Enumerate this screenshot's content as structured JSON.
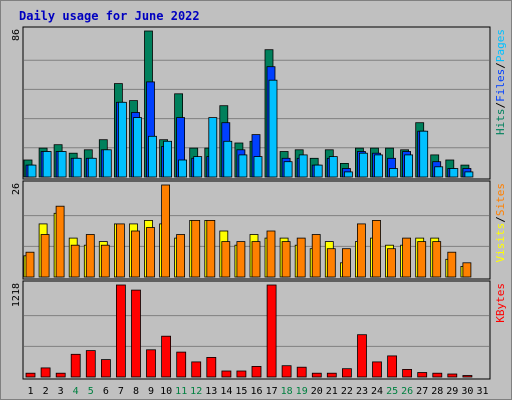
{
  "chart_data": {
    "type": "bar",
    "title": "Daily usage for June 2022",
    "colors": {
      "hits": "#00805c",
      "files": "#0040ff",
      "pages": "#00c0ff",
      "visits": "#ffff00",
      "sites": "#ff8000",
      "kbytes": "#ff0000",
      "title": "#0000c0",
      "weekend_label": "#008040",
      "weekday_label": "#000000"
    },
    "days": [
      "1",
      "2",
      "3",
      "4",
      "5",
      "6",
      "7",
      "8",
      "9",
      "10",
      "11",
      "12",
      "13",
      "14",
      "15",
      "16",
      "17",
      "18",
      "19",
      "20",
      "21",
      "22",
      "23",
      "24",
      "25",
      "26",
      "27",
      "28",
      "29",
      "30",
      "31"
    ],
    "weekend_days": [
      "4",
      "5",
      "11",
      "12",
      "18",
      "19",
      "25",
      "26"
    ],
    "panels": [
      {
        "id": "hits-panel",
        "max_label": "86",
        "ymax": 86,
        "legend": [
          {
            "text": "Hits",
            "color": "#00805c"
          },
          {
            "text": "Files",
            "color": "#0040ff"
          },
          {
            "text": "Pages",
            "color": "#00c0ff"
          }
        ],
        "series": [
          {
            "name": "Hits",
            "color": "#00805c",
            "values": [
              10,
              17,
              19,
              14,
              16,
              22,
              55,
              45,
              86,
              22,
              49,
              17,
              17,
              42,
              20,
              21,
              75,
              15,
              16,
              11,
              16,
              8,
              17,
              17,
              17,
              16,
              32,
              13,
              10,
              7,
              0
            ]
          },
          {
            "name": "Files",
            "color": "#0040ff",
            "values": [
              7,
              15,
              15,
              11,
              11,
              16,
              44,
              38,
              56,
              18,
              35,
              11,
              12,
              32,
              16,
              25,
              65,
              11,
              11,
              7,
              11,
              5,
              15,
              14,
              11,
              15,
              27,
              9,
              5,
              5,
              0
            ]
          },
          {
            "name": "Pages",
            "color": "#00c0ff",
            "values": [
              7,
              15,
              15,
              11,
              11,
              16,
              44,
              35,
              24,
              21,
              10,
              12,
              35,
              21,
              13,
              12,
              57,
              9,
              13,
              7,
              12,
              3,
              14,
              13,
              5,
              13,
              27,
              6,
              5,
              3,
              0
            ]
          }
        ]
      },
      {
        "id": "visits-panel",
        "max_label": "26",
        "ymax": 26,
        "legend": [
          {
            "text": "Visits",
            "color": "#ffff00"
          },
          {
            "text": "Sites",
            "color": "#ff8000"
          }
        ],
        "series": [
          {
            "name": "Visits",
            "color": "#ffff00",
            "values": [
              6,
              15,
              18,
              11,
              9,
              10,
              15,
              15,
              16,
              15,
              11,
              16,
              16,
              13,
              9,
              12,
              11,
              11,
              9,
              8,
              10,
              4,
              10,
              11,
              9,
              9,
              11,
              11,
              5,
              3,
              0
            ]
          },
          {
            "name": "Sites",
            "color": "#ff8000",
            "values": [
              7,
              12,
              20,
              9,
              12,
              9,
              15,
              13,
              14,
              26,
              12,
              16,
              16,
              10,
              10,
              10,
              13,
              10,
              11,
              12,
              8,
              8,
              15,
              16,
              8,
              11,
              10,
              10,
              7,
              4,
              0
            ]
          }
        ]
      },
      {
        "id": "kbytes-panel",
        "max_label": "1218",
        "ymax": 1218,
        "legend": [
          {
            "text": "KBytes",
            "color": "#ff0000"
          }
        ],
        "series": [
          {
            "name": "KBytes",
            "color": "#ff0000",
            "values": [
              50,
              120,
              50,
              300,
              350,
              230,
              1218,
              1150,
              360,
              540,
              330,
              200,
              260,
              80,
              80,
              140,
              1218,
              150,
              130,
              50,
              50,
              110,
              560,
              200,
              280,
              100,
              60,
              50,
              40,
              20,
              0
            ]
          }
        ]
      }
    ]
  }
}
